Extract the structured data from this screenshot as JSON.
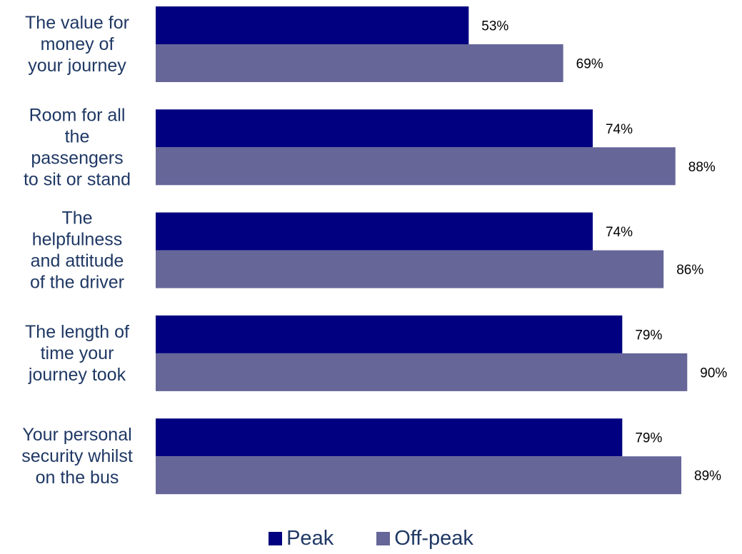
{
  "chart_data": {
    "type": "bar",
    "orientation": "horizontal",
    "categories": [
      "The value for money of your journey",
      "Room for all the passengers to sit or stand",
      "The helpfulness and attitude of the driver",
      "The length of time your journey took",
      "Your personal security whilst on the bus"
    ],
    "category_lines": [
      [
        "The value for",
        "money of",
        "your journey"
      ],
      [
        "Room for all",
        "the",
        "passengers",
        "to sit or stand"
      ],
      [
        "The",
        "helpfulness",
        "and attitude",
        "of the driver"
      ],
      [
        "The length of",
        "time your",
        "journey took"
      ],
      [
        "Your personal",
        "security whilst",
        "on the bus"
      ]
    ],
    "series": [
      {
        "name": "Peak",
        "color": "#000080",
        "values": [
          53,
          74,
          74,
          79,
          79
        ],
        "labels": [
          "53%",
          "74%",
          "74%",
          "79%",
          "79%"
        ]
      },
      {
        "name": "Off-peak",
        "color": "#666699",
        "values": [
          69,
          88,
          86,
          90,
          89
        ],
        "labels": [
          "69%",
          "88%",
          "86%",
          "90%",
          "89%"
        ]
      }
    ],
    "xlim": [
      0,
      100
    ],
    "unit": "%",
    "grid": false,
    "legend_position": "bottom"
  }
}
